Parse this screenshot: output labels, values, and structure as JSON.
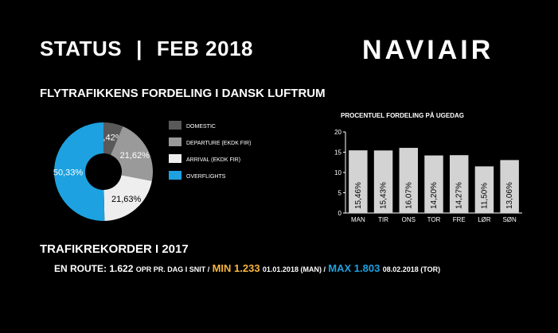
{
  "header": {
    "status_label": "STATUS",
    "separator": "|",
    "period": "FEB 2018",
    "logo_text": "NAVIAIR"
  },
  "distribution": {
    "title": "FLYTRAFIKKENS FORDELING I DANSK LUFTRUM"
  },
  "records": {
    "title": "TRAFIKREKORDER I 2017",
    "en_route_label": "EN ROUTE:",
    "avg_value": "1.622",
    "avg_unit": "OPR PR. DAG I SNIT /",
    "min_label": "MIN 1.233",
    "min_date": "01.01.2018 (MAN) /",
    "max_label": "MAX 1.803",
    "max_date": "08.02.2018 (TOR)",
    "min_color": "#f6b53f",
    "max_color": "#1da1e0"
  },
  "chart_data": [
    {
      "type": "pie",
      "donut": true,
      "categories": [
        "DOMESTIC",
        "DEPARTURE (EKDK FIR)",
        "ARRIVAL (EKDK FIR)",
        "OVERFLIGHTS"
      ],
      "values": [
        6.42,
        21.62,
        21.63,
        50.33
      ],
      "labels": [
        "6,42%",
        "21,62%",
        "21,63%",
        "50,33%"
      ],
      "colors": [
        "#595959",
        "#9a9a9a",
        "#eeeeee",
        "#1da1e0"
      ],
      "legend": "right"
    },
    {
      "type": "bar",
      "title": "PROCENTUEL FORDELING PÅ UGEDAG",
      "categories": [
        "MAN",
        "TIR",
        "ONS",
        "TOR",
        "FRE",
        "LØR",
        "SØN"
      ],
      "values": [
        15.46,
        15.43,
        16.07,
        14.2,
        14.27,
        11.5,
        13.06
      ],
      "labels": [
        "15,46%",
        "15,43%",
        "16,07%",
        "14,20%",
        "14,27%",
        "11,50%",
        "13,06%"
      ],
      "yticks": [
        "0",
        "5",
        "10",
        "15",
        "20"
      ],
      "ylim": [
        0,
        20
      ],
      "grid": false,
      "bar_color": "#d3d3d3",
      "xlabel": "",
      "ylabel": ""
    }
  ]
}
